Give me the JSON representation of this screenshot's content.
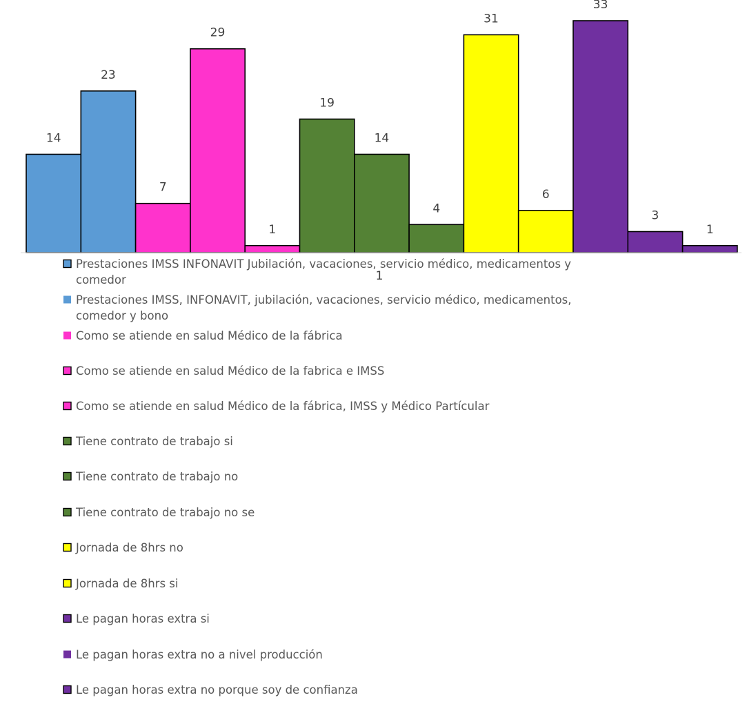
{
  "chart_data": {
    "type": "bar",
    "ylim": [
      0,
      33
    ],
    "grid": false,
    "legend_position": "bottom",
    "series": [
      {
        "name": "Prestaciones IMSS INFONAVIT Jubilación, vacaciones, servicio médico, medicamentos y comedor",
        "value": 14,
        "color": "#5b9bd5",
        "marker_style": "outlined"
      },
      {
        "name": "Prestaciones IMSS, INFONAVIT, jubilación, vacaciones, servicio médico, medicamentos, comedor y bono",
        "value": 23,
        "color": "#5b9bd5",
        "marker_style": "filled"
      },
      {
        "name": "Como se atiende en salud Médico de la fábrica",
        "value": 7,
        "color": "#ff33cc",
        "marker_style": "filled"
      },
      {
        "name": "Como se atiende en salud Médico de la fabrica e IMSS",
        "value": 29,
        "color": "#ff33cc",
        "marker_style": "outlined"
      },
      {
        "name": "Como se atiende en salud Médico de la fábrica, IMSS y Médico Partícular",
        "value": 1,
        "color": "#ff33cc",
        "marker_style": "outlined"
      },
      {
        "name": "Tiene contrato de trabajo si",
        "value": 19,
        "color": "#548235",
        "marker_style": "outlined"
      },
      {
        "name": "Tiene contrato de trabajo no",
        "value": 14,
        "color": "#548235",
        "marker_style": "outlined"
      },
      {
        "name": "Tiene contrato de trabajo no se",
        "value": 4,
        "color": "#548235",
        "marker_style": "outlined"
      },
      {
        "name": "Jornada de 8hrs no",
        "value": 31,
        "color": "#ffff00",
        "marker_style": "outlined"
      },
      {
        "name": "Jornada de 8hrs si",
        "value": 6,
        "color": "#ffff00",
        "marker_style": "outlined"
      },
      {
        "name": "Le pagan horas extra si",
        "value": 33,
        "color": "#7030a0",
        "marker_style": "outlined"
      },
      {
        "name": "Le pagan horas extra no  a nivel producción",
        "value": 3,
        "color": "#7030a0",
        "marker_style": "filled"
      },
      {
        "name": "Le pagan horas extra no porque soy de confianza",
        "value": 1,
        "color": "#7030a0",
        "marker_style": "outlined"
      }
    ],
    "annotations": [
      "1"
    ]
  }
}
